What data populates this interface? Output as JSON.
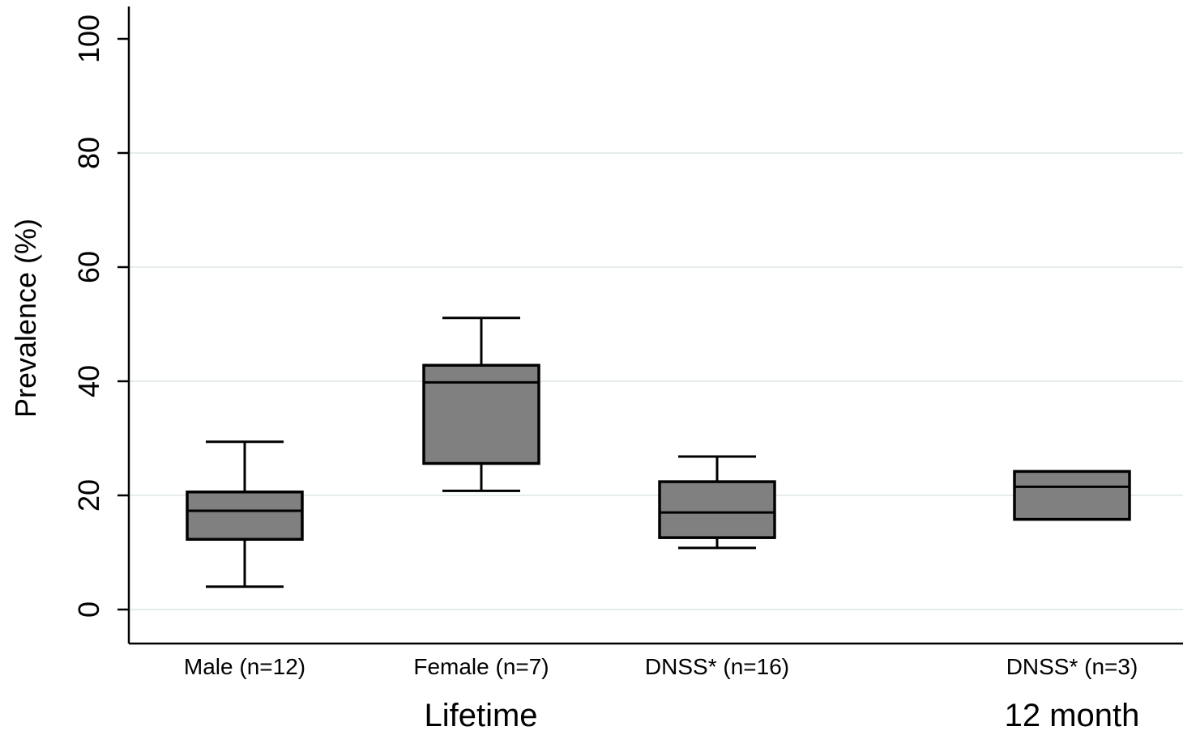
{
  "chart_data": {
    "type": "box",
    "ylabel": "Prevalence (%)",
    "ylim": [
      0,
      100
    ],
    "yticks": [
      0,
      20,
      40,
      60,
      80,
      100
    ],
    "grid": true,
    "colors": {
      "box_fill": "#808080",
      "stroke": "#000000",
      "grid": "#e6ecec"
    },
    "groups": [
      {
        "label": "Lifetime",
        "categories": [
          "Male (n=12)",
          "Female (n=7)",
          "DNSS* (n=16)"
        ]
      },
      {
        "label": "12 month",
        "categories": [
          "DNSS* (n=3)"
        ]
      }
    ],
    "boxes": [
      {
        "category": "Male (n=12)",
        "min": 4,
        "q1": 12.3,
        "median": 17.3,
        "q3": 20.6,
        "max": 29.4
      },
      {
        "category": "Female (n=7)",
        "min": 20.8,
        "q1": 25.6,
        "median": 39.8,
        "q3": 42.8,
        "max": 51.1
      },
      {
        "category": "DNSS* (n=16)",
        "min": 10.8,
        "q1": 12.6,
        "median": 17.0,
        "q3": 22.4,
        "max": 26.8
      },
      {
        "category": "DNSS* (n=3)",
        "min": 15.8,
        "q1": 15.8,
        "median": 21.5,
        "q3": 24.2,
        "max": 24.2
      }
    ]
  }
}
